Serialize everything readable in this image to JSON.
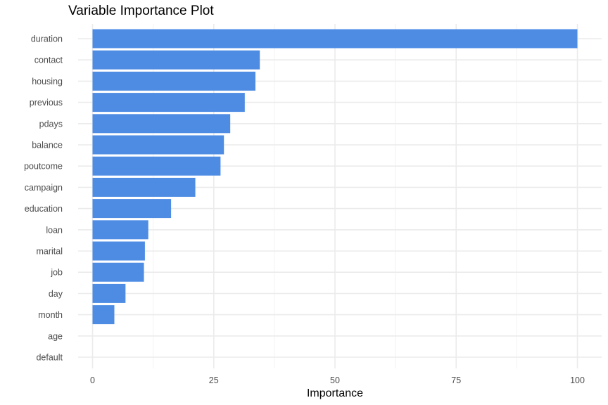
{
  "chart_data": {
    "type": "bar",
    "orientation": "horizontal",
    "title": "Variable Importance Plot",
    "xlabel": "Importance",
    "ylabel": "",
    "xlim": [
      0,
      100
    ],
    "x_ticks": [
      "0",
      "25",
      "50",
      "75",
      "100"
    ],
    "categories": [
      "duration",
      "contact",
      "housing",
      "previous",
      "pdays",
      "balance",
      "poutcome",
      "campaign",
      "education",
      "loan",
      "marital",
      "job",
      "day",
      "month",
      "age",
      "default"
    ],
    "values": [
      100,
      34.5,
      33.6,
      31.4,
      28.4,
      27.1,
      26.4,
      21.2,
      16.2,
      11.5,
      10.8,
      10.6,
      6.8,
      4.5,
      0,
      0
    ],
    "bar_color": "#4e8ce4",
    "grid": true,
    "legend": "none"
  }
}
